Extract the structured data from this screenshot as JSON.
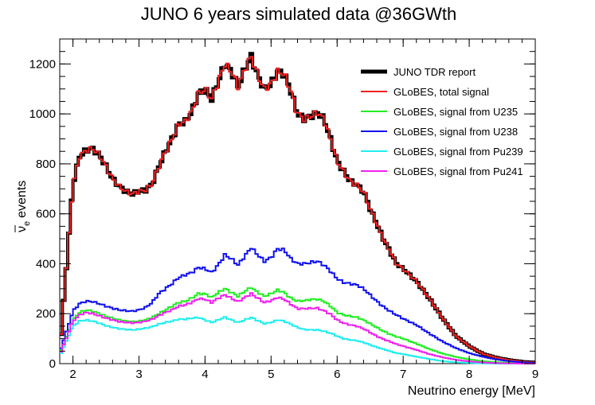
{
  "chart_data": {
    "type": "line",
    "title": "JUNO 6 years simulated data @36GWth",
    "xlabel": "Neutrino energy [MeV]",
    "ylabel": "events",
    "ylabel_symbol": "ν",
    "ylabel_subscript": "e",
    "xlim": [
      1.8,
      9.0
    ],
    "ylim": [
      0,
      1300
    ],
    "x_ticks": [
      2,
      3,
      4,
      5,
      6,
      7,
      8,
      9
    ],
    "y_ticks": [
      0,
      200,
      400,
      600,
      800,
      1000,
      1200
    ],
    "legend_position": "top-right",
    "x": [
      1.8,
      2.0,
      2.1,
      2.2,
      2.3,
      2.4,
      2.5,
      2.6,
      2.7,
      2.8,
      2.9,
      3.0,
      3.1,
      3.2,
      3.3,
      3.4,
      3.5,
      3.6,
      3.7,
      3.8,
      3.9,
      4.0,
      4.1,
      4.2,
      4.3,
      4.4,
      4.5,
      4.6,
      4.7,
      4.8,
      4.9,
      5.0,
      5.1,
      5.2,
      5.3,
      5.4,
      5.5,
      5.6,
      5.7,
      5.8,
      5.9,
      6.0,
      6.1,
      6.2,
      6.3,
      6.4,
      6.5,
      6.6,
      6.7,
      6.8,
      6.9,
      7.0,
      7.2,
      7.4,
      7.6,
      7.8,
      8.0,
      8.2,
      8.4,
      8.6,
      8.8,
      9.0
    ],
    "series": [
      {
        "name": "JUNO TDR report",
        "color": "#000000",
        "width": 4,
        "values": [
          50,
          720,
          830,
          855,
          860,
          835,
          790,
          740,
          710,
          690,
          680,
          690,
          695,
          720,
          790,
          850,
          900,
          960,
          970,
          1010,
          1080,
          1100,
          1060,
          1130,
          1200,
          1170,
          1110,
          1180,
          1230,
          1150,
          1100,
          1120,
          1170,
          1160,
          1090,
          1000,
          980,
          990,
          1005,
          980,
          900,
          810,
          770,
          730,
          715,
          690,
          620,
          560,
          500,
          450,
          400,
          380,
          330,
          260,
          180,
          110,
          70,
          40,
          25,
          15,
          8,
          5
        ]
      },
      {
        "name": "GLoBES, total signal",
        "color": "#ee2222",
        "width": 2,
        "values": [
          50,
          720,
          830,
          855,
          860,
          835,
          790,
          740,
          710,
          690,
          680,
          690,
          695,
          720,
          790,
          850,
          900,
          960,
          970,
          1010,
          1080,
          1100,
          1060,
          1130,
          1200,
          1170,
          1110,
          1180,
          1230,
          1150,
          1100,
          1120,
          1170,
          1160,
          1090,
          1000,
          980,
          990,
          1005,
          980,
          900,
          810,
          770,
          730,
          715,
          690,
          620,
          560,
          500,
          450,
          400,
          380,
          330,
          260,
          180,
          110,
          70,
          40,
          25,
          15,
          8,
          5
        ]
      },
      {
        "name": "GLoBES, signal from U235",
        "color": "#22ee22",
        "width": 2,
        "values": [
          40,
          175,
          205,
          215,
          210,
          200,
          190,
          182,
          175,
          170,
          168,
          170,
          175,
          185,
          200,
          215,
          230,
          245,
          250,
          262,
          280,
          280,
          265,
          285,
          300,
          285,
          270,
          290,
          305,
          285,
          270,
          280,
          295,
          285,
          262,
          250,
          252,
          257,
          258,
          250,
          230,
          205,
          195,
          190,
          185,
          175,
          160,
          145,
          130,
          118,
          108,
          100,
          80,
          58,
          40,
          27,
          17,
          10,
          6,
          3,
          2,
          1
        ]
      },
      {
        "name": "GLoBES, signal from U238",
        "color": "#1111ee",
        "width": 2,
        "values": [
          45,
          210,
          240,
          250,
          248,
          240,
          230,
          222,
          215,
          212,
          210,
          215,
          225,
          245,
          280,
          300,
          320,
          345,
          355,
          365,
          385,
          380,
          365,
          395,
          435,
          420,
          395,
          430,
          465,
          435,
          410,
          425,
          460,
          455,
          420,
          400,
          400,
          405,
          410,
          395,
          370,
          340,
          325,
          320,
          315,
          300,
          275,
          250,
          228,
          210,
          195,
          180,
          155,
          120,
          88,
          62,
          42,
          28,
          17,
          10,
          5,
          3
        ]
      },
      {
        "name": "GLoBES, signal from Pu239",
        "color": "#22eeee",
        "width": 2,
        "values": [
          30,
          150,
          170,
          175,
          170,
          162,
          152,
          145,
          140,
          137,
          135,
          138,
          142,
          148,
          158,
          165,
          170,
          178,
          178,
          182,
          185,
          175,
          165,
          175,
          185,
          175,
          165,
          175,
          185,
          172,
          160,
          165,
          175,
          170,
          158,
          145,
          137,
          135,
          135,
          130,
          122,
          110,
          100,
          95,
          92,
          85,
          75,
          66,
          58,
          50,
          42,
          38,
          28,
          18,
          10,
          5,
          3,
          1,
          0,
          0,
          0,
          0
        ]
      },
      {
        "name": "GLoBES, signal from Pu241",
        "color": "#ee22ee",
        "width": 2,
        "values": [
          35,
          170,
          195,
          205,
          200,
          192,
          182,
          175,
          168,
          165,
          163,
          165,
          170,
          178,
          192,
          205,
          215,
          230,
          235,
          245,
          260,
          258,
          245,
          262,
          275,
          262,
          248,
          265,
          280,
          262,
          245,
          252,
          265,
          258,
          238,
          220,
          220,
          222,
          222,
          212,
          198,
          175,
          162,
          155,
          150,
          140,
          125,
          110,
          98,
          88,
          78,
          70,
          55,
          38,
          25,
          15,
          9,
          5,
          2,
          1,
          0,
          0
        ]
      }
    ]
  }
}
